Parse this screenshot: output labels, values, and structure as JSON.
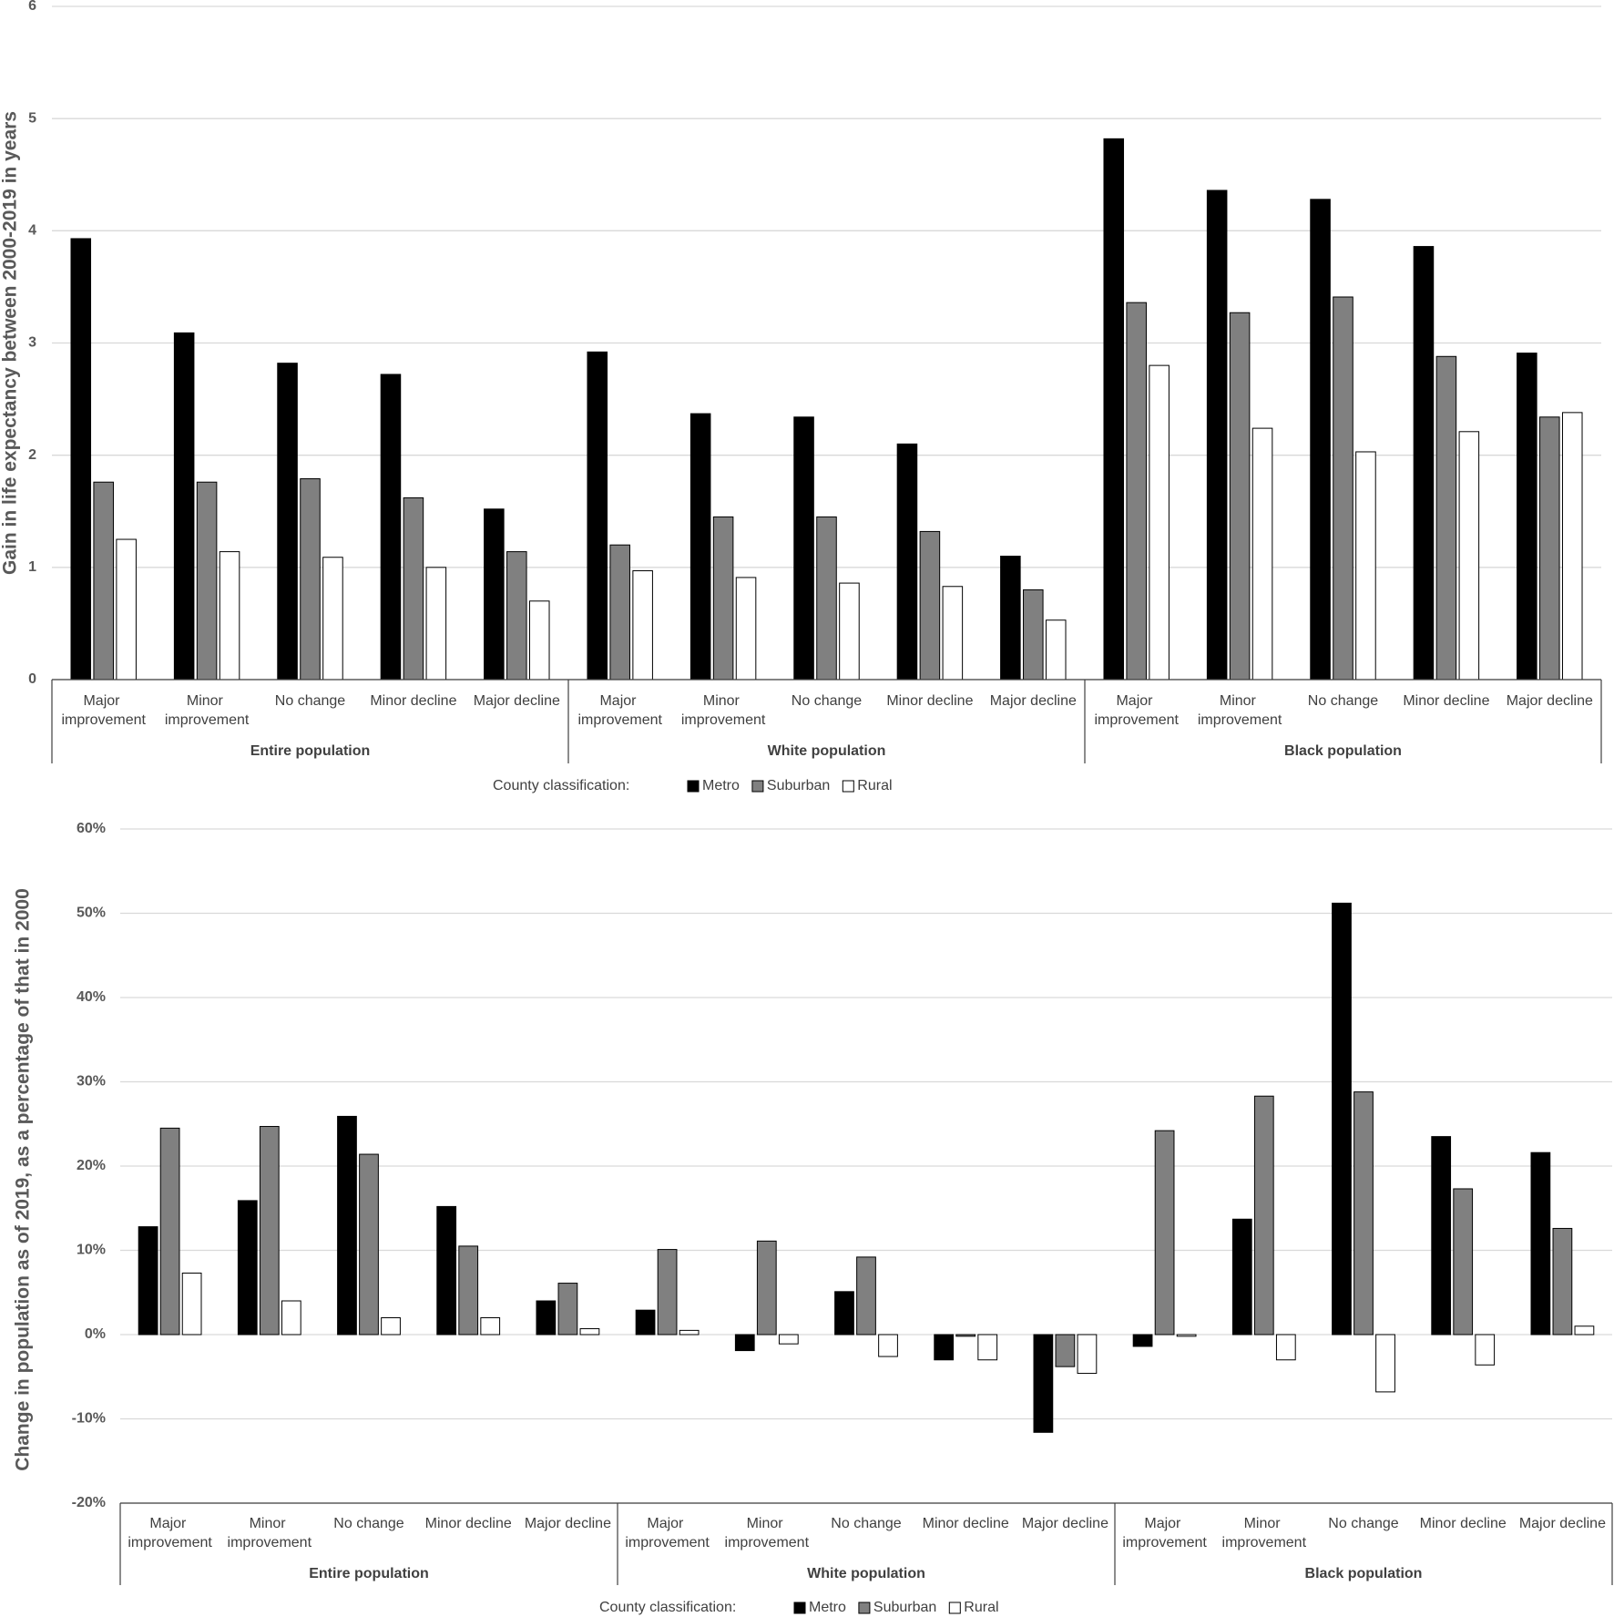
{
  "chart_data": [
    {
      "type": "bar",
      "y_label": "Gain in life expectancy between 2000-2019 in years",
      "categories": [
        "Major improvement",
        "Minor improvement",
        "No change",
        "Minor decline",
        "Major decline",
        "Major improvement",
        "Minor improvement",
        "No change",
        "Minor decline",
        "Major decline",
        "Major improvement",
        "Minor improvement",
        "No change",
        "Minor decline",
        "Major decline"
      ],
      "groups": [
        "Entire population",
        "White population",
        "Black population"
      ],
      "legend_title": "County classification:",
      "series": [
        {
          "name": "Metro",
          "color": "#000000",
          "values": [
            3.93,
            3.09,
            2.82,
            2.72,
            1.52,
            2.92,
            2.37,
            2.34,
            2.1,
            1.1,
            4.82,
            4.36,
            4.28,
            3.86,
            2.91
          ]
        },
        {
          "name": "Suburban",
          "color": "#808080",
          "values": [
            1.76,
            1.76,
            1.79,
            1.62,
            1.14,
            1.2,
            1.45,
            1.45,
            1.32,
            0.8,
            3.36,
            3.27,
            3.41,
            2.88,
            2.34
          ]
        },
        {
          "name": "Rural",
          "color": "#ffffff",
          "values": [
            1.25,
            1.14,
            1.09,
            1.0,
            0.7,
            0.97,
            0.91,
            0.86,
            0.83,
            0.53,
            2.8,
            2.24,
            2.03,
            2.21,
            2.38
          ]
        }
      ],
      "ylim": [
        0,
        6
      ],
      "yticks": [
        0,
        1,
        2,
        3,
        4,
        5,
        6
      ],
      "grid": true
    },
    {
      "type": "bar",
      "y_label": "Change in population as of 2019, as a percentage of that in 2000",
      "categories": [
        "Major improvement",
        "Minor improvement",
        "No change",
        "Minor decline",
        "Major decline",
        "Major improvement",
        "Minor improvement",
        "No change",
        "Minor decline",
        "Major decline",
        "Major improvement",
        "Minor improvement",
        "No change",
        "Minor decline",
        "Major decline"
      ],
      "groups": [
        "Entire population",
        "White population",
        "Black population"
      ],
      "legend_title": "County classification:",
      "series": [
        {
          "name": "Metro",
          "color": "#000000",
          "values": [
            12.8,
            15.9,
            25.9,
            15.2,
            4.0,
            2.9,
            -1.9,
            5.1,
            -3.0,
            -11.6,
            -1.4,
            13.7,
            51.2,
            23.5,
            21.6
          ]
        },
        {
          "name": "Suburban",
          "color": "#808080",
          "values": [
            24.5,
            24.7,
            21.4,
            10.5,
            6.1,
            10.1,
            11.1,
            9.2,
            -0.2,
            -3.8,
            24.2,
            28.3,
            28.8,
            17.3,
            12.6
          ]
        },
        {
          "name": "Rural",
          "color": "#ffffff",
          "values": [
            7.3,
            4.0,
            2.0,
            2.0,
            0.7,
            0.5,
            -1.1,
            -2.6,
            -3.0,
            -4.6,
            -0.2,
            -3.0,
            -6.8,
            -3.6,
            1.0
          ]
        }
      ],
      "ylim": [
        -20,
        60
      ],
      "yticks": [
        {
          "value": -20,
          "label": "-20%"
        },
        {
          "value": -10,
          "label": "-10%"
        },
        {
          "value": 0,
          "label": "0%"
        },
        {
          "value": 10,
          "label": "10%"
        },
        {
          "value": 20,
          "label": "20%"
        },
        {
          "value": 30,
          "label": "30%"
        },
        {
          "value": 40,
          "label": "40%"
        },
        {
          "value": 50,
          "label": "50%"
        },
        {
          "value": 60,
          "label": "60%"
        }
      ],
      "grid": true
    }
  ]
}
